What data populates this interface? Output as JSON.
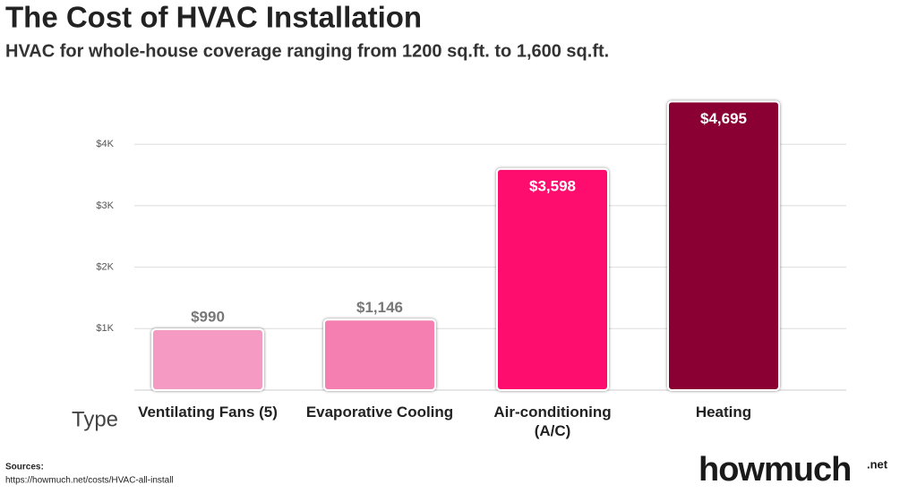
{
  "chart_data": {
    "type": "bar",
    "title": "The Cost of HVAC Installation",
    "subtitle": "HVAC for whole-house coverage ranging from 1200 sq.ft. to 1,600 sq.ft.",
    "x_label": "Type",
    "categories": [
      "Ventilating Fans (5)",
      "Evaporative Cooling",
      "Air-conditioning (A/C)",
      "Heating"
    ],
    "values": [
      990,
      1146,
      3598,
      4695
    ],
    "value_labels": [
      "$990",
      "$1,146",
      "$3,598",
      "$4,695"
    ],
    "colors": [
      "#f59ac2",
      "#f47fb0",
      "#fe0f6e",
      "#8a0030"
    ],
    "ylim": [
      0,
      5000
    ],
    "yticks": [
      {
        "value": 1000,
        "label": "$1K"
      },
      {
        "value": 2000,
        "label": "$2K"
      },
      {
        "value": 3000,
        "label": "$3K"
      },
      {
        "value": 4000,
        "label": "$4K"
      }
    ],
    "grid": true,
    "sources_label": "Sources:",
    "source": "https://howmuch.net/costs/HVAC-all-install",
    "brand": "howmuch",
    "brand_suffix": ".net"
  }
}
